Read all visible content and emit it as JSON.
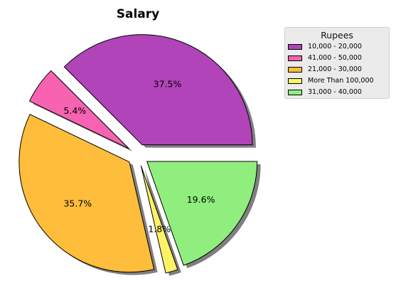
{
  "chart_data": {
    "type": "pie",
    "title": "Salary",
    "legend_title": "Rupees",
    "legend_position": "upper-right",
    "shadow": true,
    "exploded": true,
    "slices": [
      {
        "label": "10,000 - 20,000",
        "value": 37.5,
        "pct_label": "37.5%",
        "color": "#b044b8"
      },
      {
        "label": "41,000 - 50,000",
        "value": 5.4,
        "pct_label": "5.4%",
        "color": "#f763b1"
      },
      {
        "label": "21,000 - 30,000",
        "value": 35.7,
        "pct_label": "35.7%",
        "color": "#febd3b"
      },
      {
        "label": "More Than 100,000",
        "value": 1.8,
        "pct_label": "1.8%",
        "color": "#fcf266"
      },
      {
        "label": "31,000 - 40,000",
        "value": 19.6,
        "pct_label": "19.6%",
        "color": "#90ee7f"
      }
    ]
  }
}
